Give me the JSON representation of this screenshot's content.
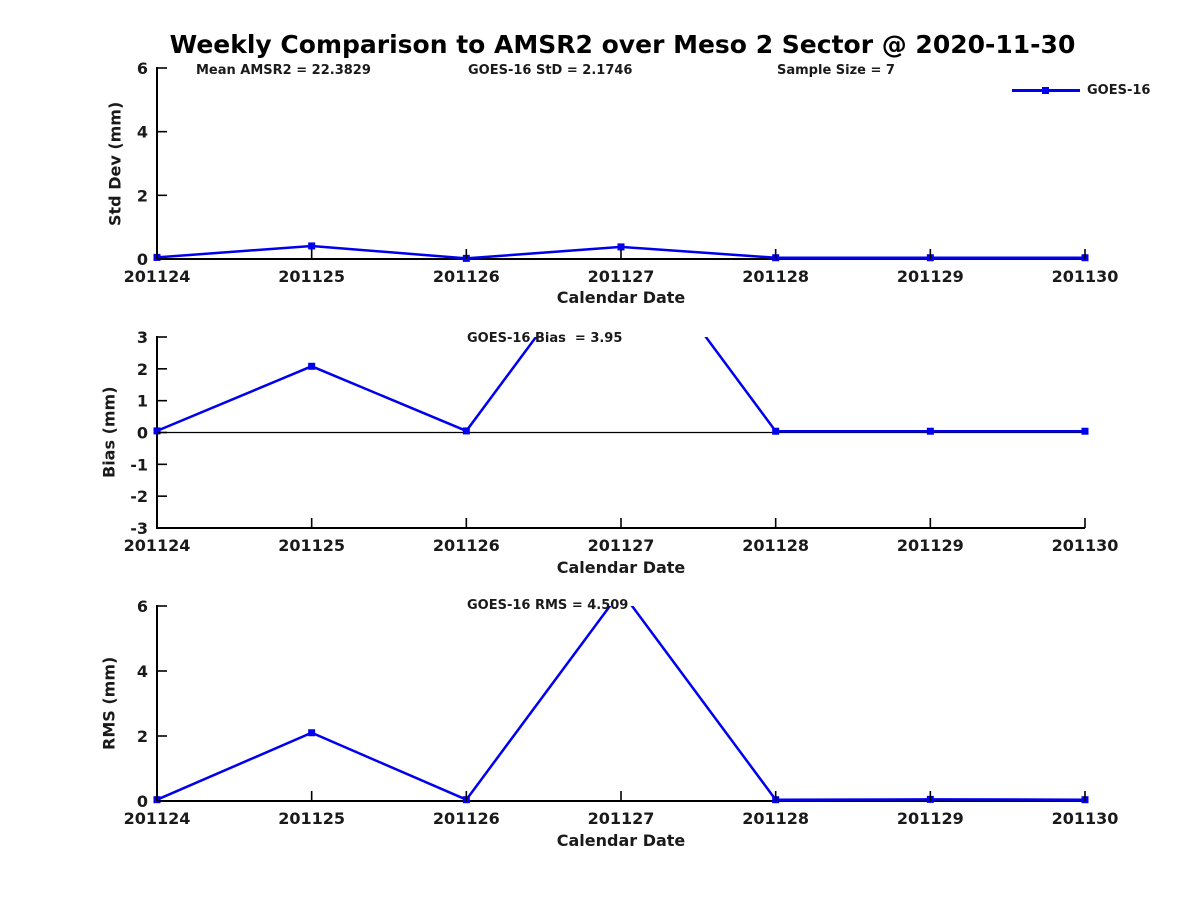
{
  "title": "Weekly Comparison to AMSR2 over Meso 2 Sector @ 2020-11-30",
  "stats": {
    "mean_amsr2": "Mean AMSR2 = 22.3829",
    "goes16_std": "GOES-16 StD = 2.1746",
    "sample_size": "Sample Size = 7"
  },
  "legend": {
    "label": "GOES-16"
  },
  "colors": {
    "series": "#0000EE",
    "axis": "#000000",
    "zero_line": "#000000",
    "text": "#1a1a1a",
    "background": "#ffffff"
  },
  "chart_data": [
    {
      "type": "line",
      "panel": "std-dev",
      "ylabel": "Std Dev (mm)",
      "xlabel": "Calendar Date",
      "categories": [
        "201124",
        "201125",
        "201126",
        "201127",
        "201128",
        "201129",
        "201130"
      ],
      "series": [
        {
          "name": "GOES-16",
          "values": [
            0.05,
            0.41,
            0.02,
            0.38,
            0.04,
            0.04,
            0.04
          ]
        }
      ],
      "ylim": [
        0,
        6
      ],
      "y_ticks": [
        0,
        2,
        4,
        6
      ],
      "annotation": null,
      "zero_line": false,
      "grid": false,
      "marker": "square",
      "clip_to_ylim": true
    },
    {
      "type": "line",
      "panel": "bias",
      "ylabel": "Bias (mm)",
      "xlabel": "Calendar Date",
      "categories": [
        "201124",
        "201125",
        "201126",
        "201127",
        "201128",
        "201129",
        "201130"
      ],
      "series": [
        {
          "name": "GOES-16",
          "values": [
            0.05,
            2.08,
            0.05,
            6.6,
            0.04,
            0.04,
            0.04
          ]
        }
      ],
      "ylim": [
        -3,
        3
      ],
      "y_ticks": [
        -3,
        -2,
        -1,
        0,
        1,
        2,
        3
      ],
      "annotation": "GOES-16 Bias  = 3.95",
      "zero_line": true,
      "grid": false,
      "marker": "square",
      "clip_to_ylim": true
    },
    {
      "type": "line",
      "panel": "rms",
      "ylabel": "RMS (mm)",
      "xlabel": "Calendar Date",
      "categories": [
        "201124",
        "201125",
        "201126",
        "201127",
        "201128",
        "201129",
        "201130"
      ],
      "series": [
        {
          "name": "GOES-16",
          "values": [
            0.04,
            2.1,
            0.04,
            6.46,
            0.04,
            0.05,
            0.04
          ]
        }
      ],
      "ylim": [
        0,
        6
      ],
      "y_ticks": [
        0,
        2,
        4,
        6
      ],
      "annotation": "GOES-16 RMS = 4.509",
      "zero_line": false,
      "grid": false,
      "marker": "square",
      "clip_to_ylim": true
    }
  ]
}
